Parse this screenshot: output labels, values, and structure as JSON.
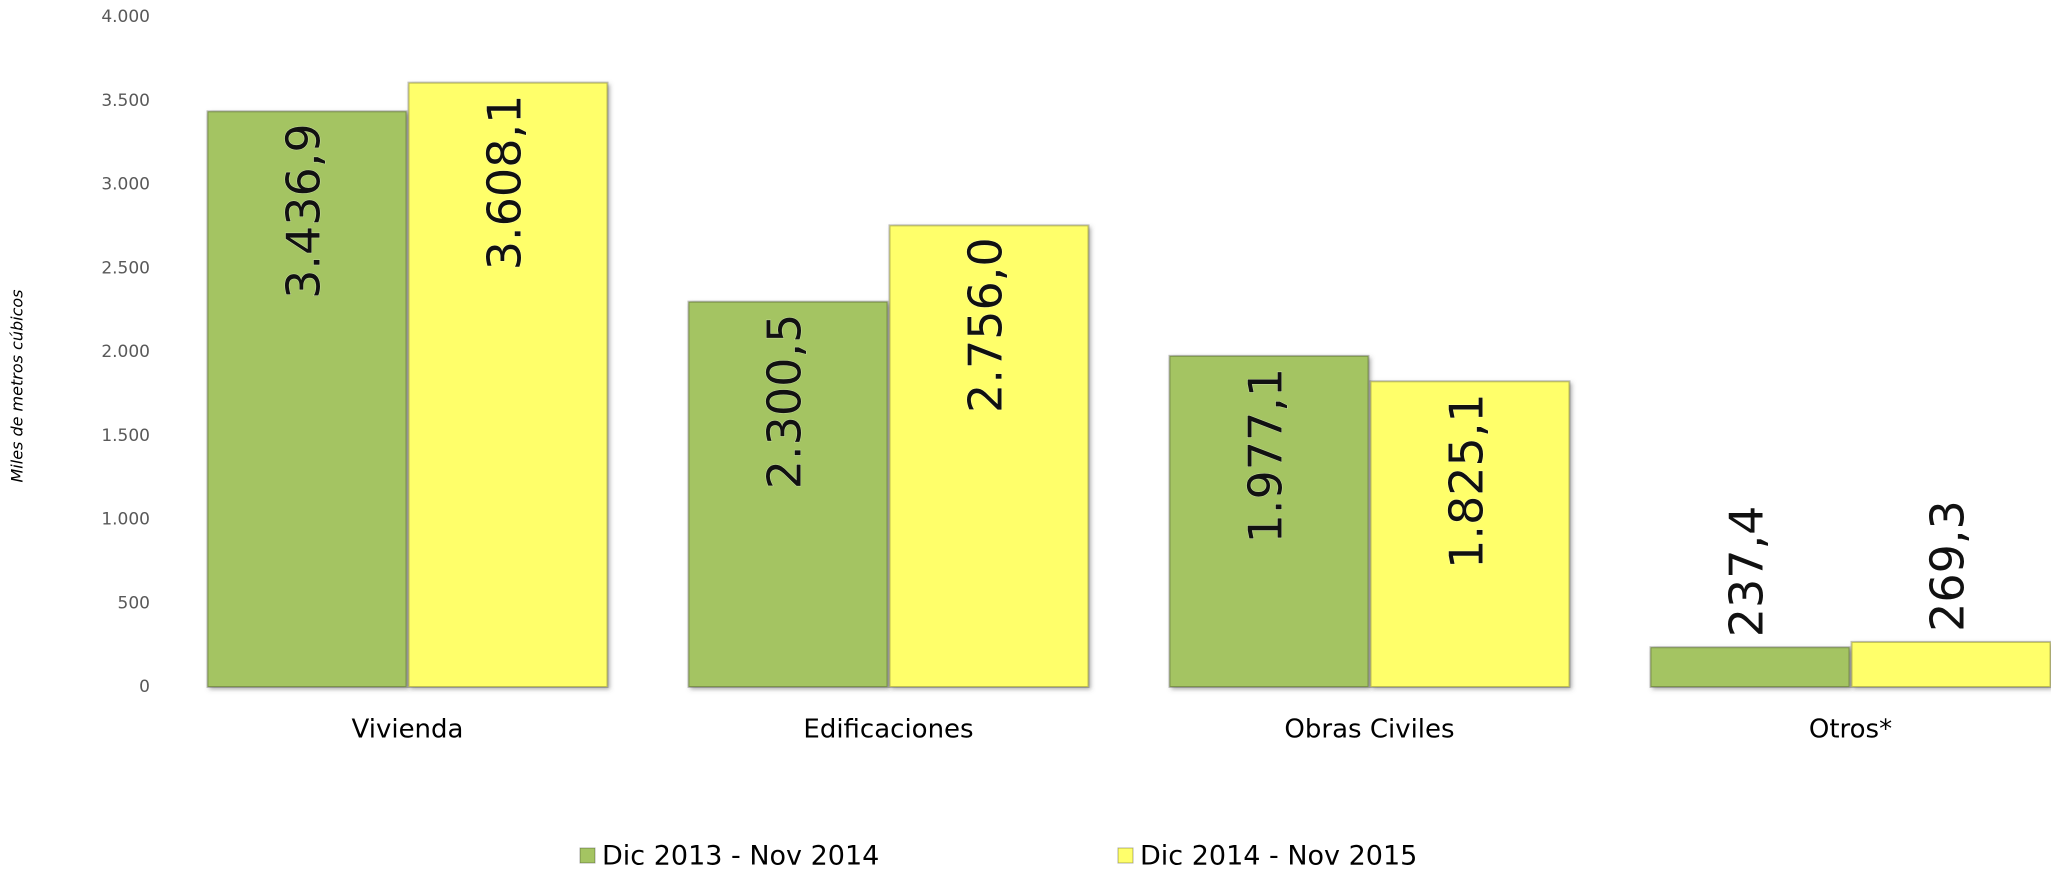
{
  "chart_data": {
    "type": "bar",
    "y_axis_label": "Miles de metros cúbicos",
    "categories": [
      "Vivienda",
      "Edificaciones",
      "Obras Civiles",
      "Otros*"
    ],
    "series": [
      {
        "name": "Dic 2013 - Nov 2014",
        "color": "#a4c462",
        "values": [
          3436.9,
          2300.5,
          1977.1,
          237.4
        ],
        "value_labels": [
          "3.436,9",
          "2.300,5",
          "1.977,1",
          "237,4"
        ]
      },
      {
        "name": "Dic 2014 - Nov 2015",
        "color": "#ffff6b",
        "values": [
          3608.1,
          2756.0,
          1825.1,
          269.3
        ],
        "value_labels": [
          "3.608,1",
          "2.756,0",
          "1.825,1",
          "269,3"
        ]
      }
    ],
    "ylim": [
      0,
      4000
    ],
    "yticks": [
      0,
      500,
      {
        "value": 1000,
        "label": "1.000"
      },
      {
        "value": 1500,
        "label": "1.500"
      },
      {
        "value": 2000,
        "label": "2.000"
      },
      {
        "value": 2500,
        "label": "2.500"
      },
      {
        "value": 3000,
        "label": "3.000"
      },
      {
        "value": 3500,
        "label": "3.500"
      },
      {
        "value": 4000,
        "label": "4.000"
      }
    ],
    "grid": false
  }
}
